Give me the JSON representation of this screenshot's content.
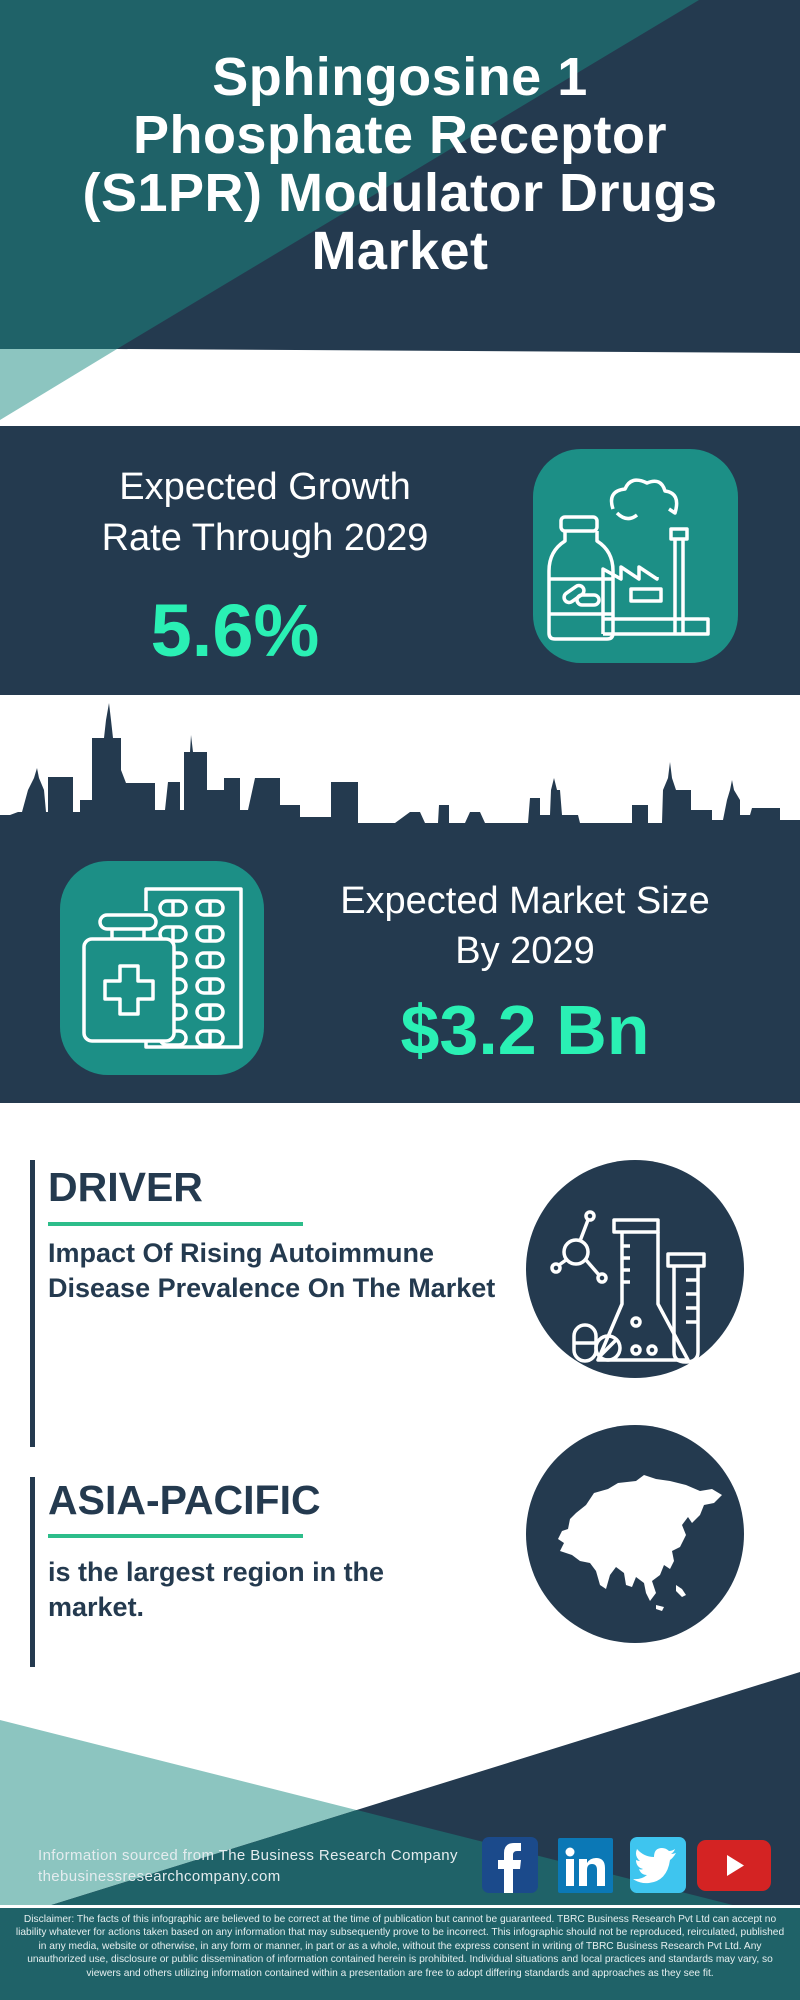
{
  "header": {
    "title_lines": [
      "Sphingosine 1",
      "Phosphate Receptor",
      "(S1PR) Modulator Drugs",
      "Market"
    ]
  },
  "growth": {
    "label_lines": [
      "Expected Growth",
      "Rate Through 2029"
    ],
    "value": "5.6%",
    "icon": "medicine-factory-icon"
  },
  "market_size": {
    "label_lines": [
      "Expected Market Size",
      "By 2029"
    ],
    "value": "$3.2 Bn",
    "icon": "medicine-bottle-pills-icon"
  },
  "driver": {
    "heading": "DRIVER",
    "description": "Impact Of Rising Autoimmune Disease Prevalence On The Market",
    "icon": "lab-flask-icon"
  },
  "region": {
    "heading": "ASIA-PACIFIC",
    "description": "is the largest region in the market.",
    "icon": "asia-map-icon"
  },
  "footer": {
    "source": "Information sourced from The Business Research Company",
    "website": "thebusinessresearchcompany.com",
    "social": [
      "facebook",
      "linkedin",
      "twitter",
      "youtube"
    ],
    "disclaimer": "Disclaimer: The facts of this infographic are believed to be correct at the time of publication but cannot be guaranteed. TBRC Business Research Pvt Ltd can accept no liability whatever for actions taken based on any information that may subsequently prove to be incorrect. This infographic should not be reproduced, reirculated, published in any media, website or otherwise, in any form or manner, in part or as a whole, without the express consent in writing of TBRC Business Research Pvt Ltd. Any unauthorized use, disclosure or public dissemination of information contained herein is prohibited. Individual situations and local practices and standards may vary, so viewers and others utilizing information contained within a presentation are free to adopt differing standards and approaches as they see fit."
  },
  "colors": {
    "navy": "#243a4f",
    "teal": "#1f6268",
    "light_teal": "#8cc5c0",
    "icon_teal": "#1c8f86",
    "accent_green": "#2af0b4",
    "underline_green": "#2dbd8a"
  }
}
